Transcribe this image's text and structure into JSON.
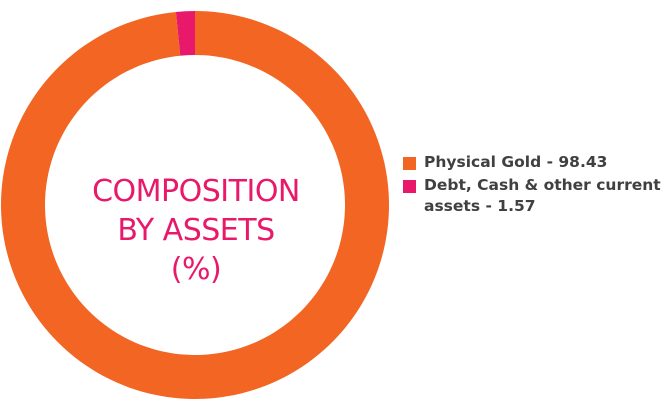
{
  "chart_data": {
    "type": "pie",
    "style": "donut",
    "center_label": [
      "COMPOSITION",
      "BY ASSETS",
      "(%)"
    ],
    "categories": [
      "Physical Gold",
      "Debt, Cash & other current assets"
    ],
    "values": [
      98.43,
      1.57
    ],
    "colors": [
      "#F26522",
      "#E8196A"
    ],
    "legend": {
      "placement": "right",
      "entries": [
        "Physical Gold - 98.43",
        "Debt, Cash & other current assets - 1.57"
      ]
    }
  },
  "colors": {
    "center_label": "#E8196A",
    "legend_text": "#404040"
  }
}
